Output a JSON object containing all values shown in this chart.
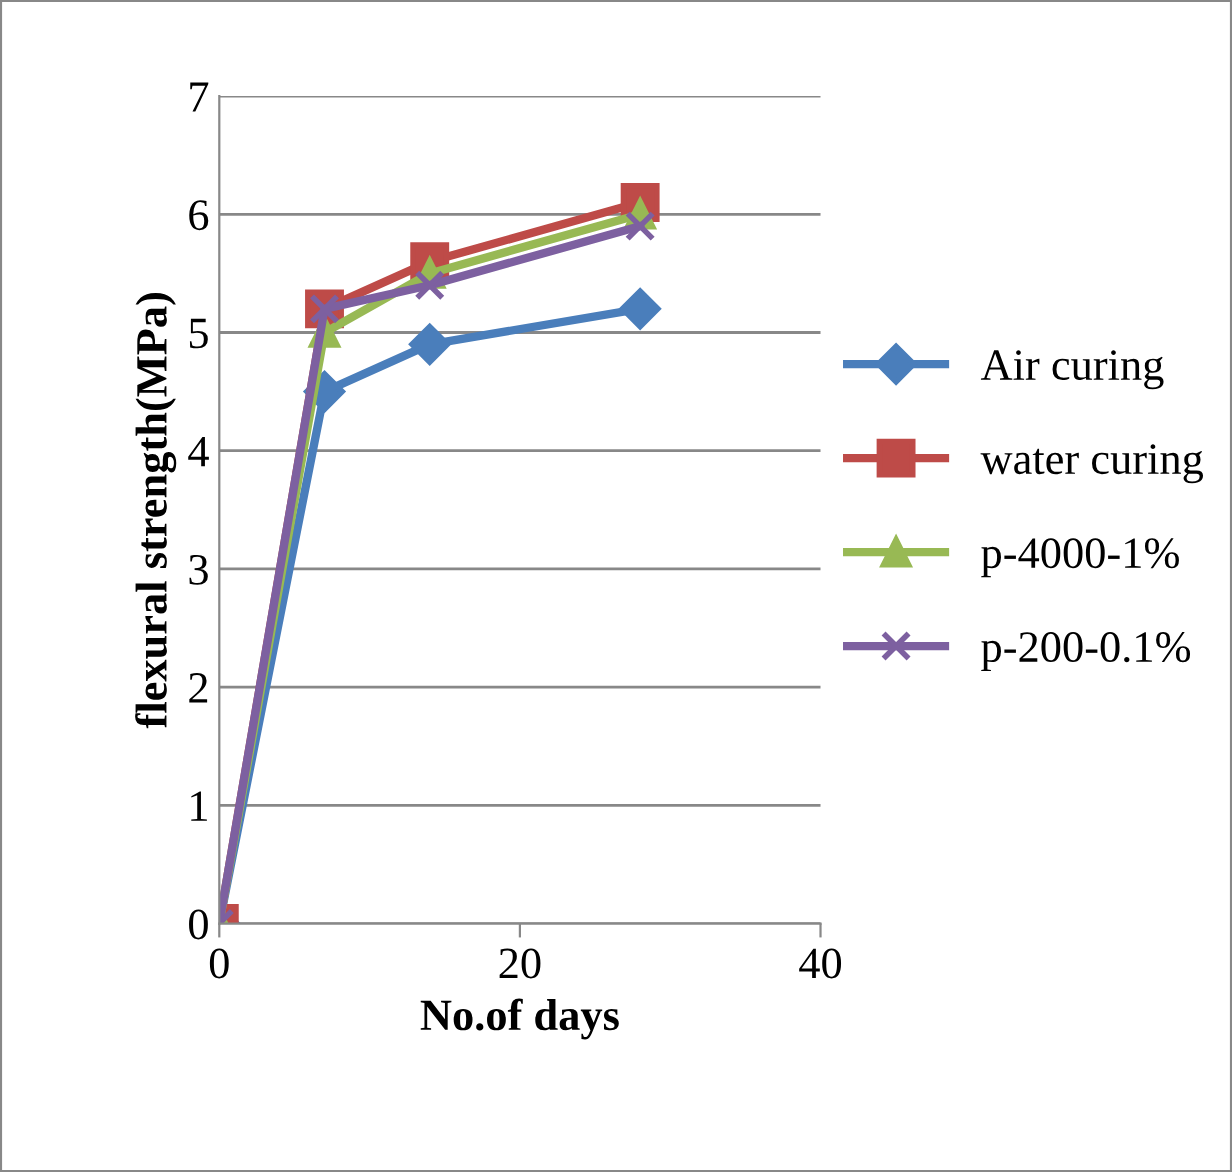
{
  "chart_data": {
    "type": "line",
    "xlabel": "No.of days",
    "ylabel": "flexural strength(MPa)",
    "x": [
      0,
      7,
      14,
      28
    ],
    "series": [
      {
        "name": "Air curing",
        "color": "#4a7ebb",
        "marker": "diamond",
        "values": [
          0,
          4.5,
          4.9,
          5.2
        ]
      },
      {
        "name": "water curing",
        "color": "#be4b48",
        "marker": "square",
        "values": [
          0,
          5.2,
          5.6,
          6.1
        ]
      },
      {
        "name": "p-4000-1%",
        "color": "#98b954",
        "marker": "triangle",
        "values": [
          0,
          5.0,
          5.5,
          6.0
        ]
      },
      {
        "name": "p-200-0.1%",
        "color": "#7d60a0",
        "marker": "cross",
        "values": [
          0,
          5.2,
          5.4,
          5.9
        ]
      }
    ],
    "xlim": [
      0,
      40
    ],
    "xticks": [
      0,
      20,
      40
    ],
    "ylim": [
      0,
      7
    ],
    "yticks": [
      0,
      1,
      2,
      3,
      4,
      5,
      6,
      7
    ],
    "grid": "y",
    "legend": "right",
    "line_style": "solid"
  }
}
